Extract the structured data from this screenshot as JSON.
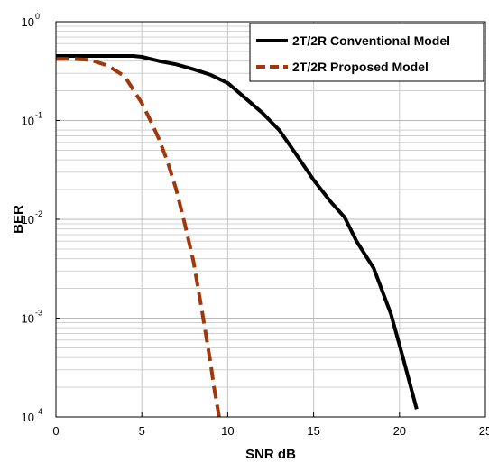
{
  "chart_data": {
    "type": "line",
    "title": "",
    "xlabel": "SNR dB",
    "ylabel": "BER",
    "xlim": [
      0,
      25
    ],
    "ylim": [
      0.0001,
      1
    ],
    "yscale": "log",
    "grid": true,
    "legend_position": "top-right",
    "x_ticks": [
      0,
      5,
      10,
      15,
      20,
      25
    ],
    "x_tick_labels": [
      "0",
      "5",
      "10",
      "15",
      "20",
      "25"
    ],
    "y_ticks": [
      0.0001,
      0.001,
      0.01,
      0.1,
      1
    ],
    "y_tick_labels": [
      {
        "base": "10",
        "exp": "-4"
      },
      {
        "base": "10",
        "exp": "-3"
      },
      {
        "base": "10",
        "exp": "-2"
      },
      {
        "base": "10",
        "exp": "-1"
      },
      {
        "base": "10",
        "exp": "0"
      }
    ],
    "series": [
      {
        "name": "2T/2R Conventional Model",
        "color": "#000000",
        "line_style": "solid",
        "x": [
          0,
          1,
          2,
          3,
          4,
          4.5,
          5,
          6,
          7,
          8,
          9,
          10,
          11,
          12,
          13,
          14,
          15,
          16,
          16.8,
          17.5,
          18.5,
          19.5,
          20.2,
          21
        ],
        "y": [
          0.45,
          0.45,
          0.45,
          0.45,
          0.45,
          0.45,
          0.44,
          0.4,
          0.37,
          0.33,
          0.29,
          0.24,
          0.17,
          0.12,
          0.08,
          0.045,
          0.025,
          0.015,
          0.0105,
          0.006,
          0.0032,
          0.0011,
          0.0004,
          0.00012
        ]
      },
      {
        "name": "2T/2R Proposed Model",
        "color": "#a0380c",
        "line_style": "dashed",
        "x": [
          0,
          1,
          2,
          3,
          4,
          5,
          5.5,
          6,
          6.5,
          7,
          7.5,
          8,
          8.5,
          9,
          9.2,
          9.5
        ],
        "y": [
          0.42,
          0.42,
          0.41,
          0.36,
          0.28,
          0.15,
          0.1,
          0.065,
          0.038,
          0.02,
          0.009,
          0.0038,
          0.0012,
          0.00035,
          0.0002,
          0.0001
        ]
      }
    ]
  }
}
